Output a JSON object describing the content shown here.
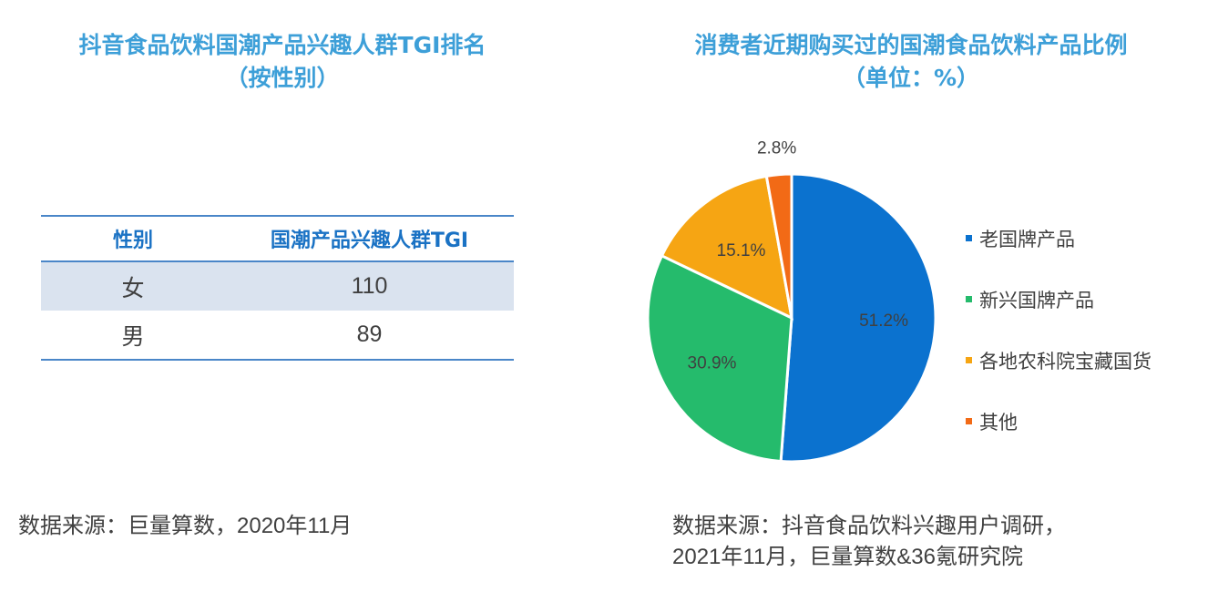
{
  "left": {
    "title_line1": "抖音食品饮料国潮产品兴趣人群TGI排名",
    "title_line2": "（按性别）",
    "table": {
      "headers": [
        "性别",
        "国潮产品兴趣人群TGI"
      ],
      "rows": [
        [
          "女",
          "110"
        ],
        [
          "男",
          "89"
        ]
      ]
    },
    "source": "数据来源：巨量算数，2020年11月"
  },
  "right": {
    "title_line1": "消费者近期购买过的国潮食品饮料产品比例",
    "title_line2": "（单位：%）",
    "source_line1": "数据来源：抖音食品饮料兴趣用户调研，",
    "source_line2": "2021年11月，巨量算数&36氪研究院"
  },
  "chart_data": {
    "type": "pie",
    "title": "消费者近期购买过的国潮食品饮料产品比例（单位：%）",
    "unit": "%",
    "slices": [
      {
        "label": "老国牌产品",
        "value": 51.2,
        "display": "51.2%",
        "color": "#0b72cf"
      },
      {
        "label": "新兴国牌产品",
        "value": 30.9,
        "display": "30.9%",
        "color": "#25bb6c"
      },
      {
        "label": "各地农科院宝藏国货",
        "value": 15.1,
        "display": "15.1%",
        "color": "#f6a513"
      },
      {
        "label": "其他",
        "value": 2.8,
        "display": "2.8%",
        "color": "#f26a16"
      }
    ],
    "legend_position": "right"
  }
}
